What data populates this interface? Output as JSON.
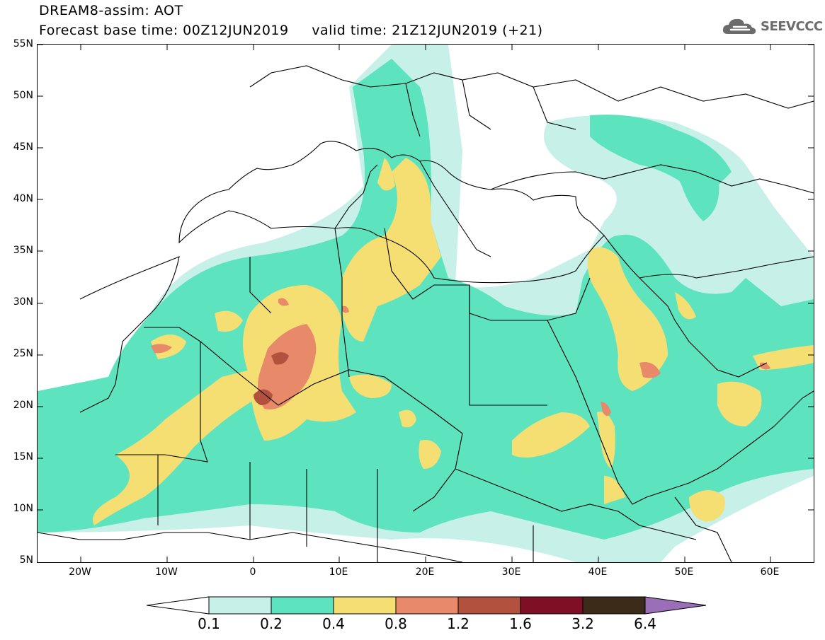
{
  "header": {
    "title_line1": "DREAM8-assim: AOT",
    "title_line2": "Forecast base time: 00Z12JUN2019     valid time: 21Z12JUN2019 (+21)",
    "logo_text": "SEEVCCC",
    "logo_icon": "cloud-icon"
  },
  "map": {
    "lat_labels": [
      "55N",
      "50N",
      "45N",
      "40N",
      "35N",
      "30N",
      "25N",
      "20N",
      "15N",
      "10N",
      "5N"
    ],
    "lon_labels": [
      "20W",
      "10W",
      "0",
      "10E",
      "20E",
      "30E",
      "40E",
      "50E",
      "60E"
    ],
    "lat_range": [
      5,
      55
    ],
    "lon_range": [
      -25,
      65
    ]
  },
  "legend": {
    "values": [
      "0.1",
      "0.2",
      "0.4",
      "0.8",
      "1.2",
      "1.6",
      "3.2",
      "6.4"
    ],
    "colors": {
      "c1": "#c7f0e8",
      "c2": "#5ee3bf",
      "c3": "#f5df73",
      "c4": "#e8896a",
      "c5": "#b2513e",
      "c6": "#7f0f25",
      "c7": "#3d2b1a",
      "c8": "#9b6eb8"
    }
  }
}
